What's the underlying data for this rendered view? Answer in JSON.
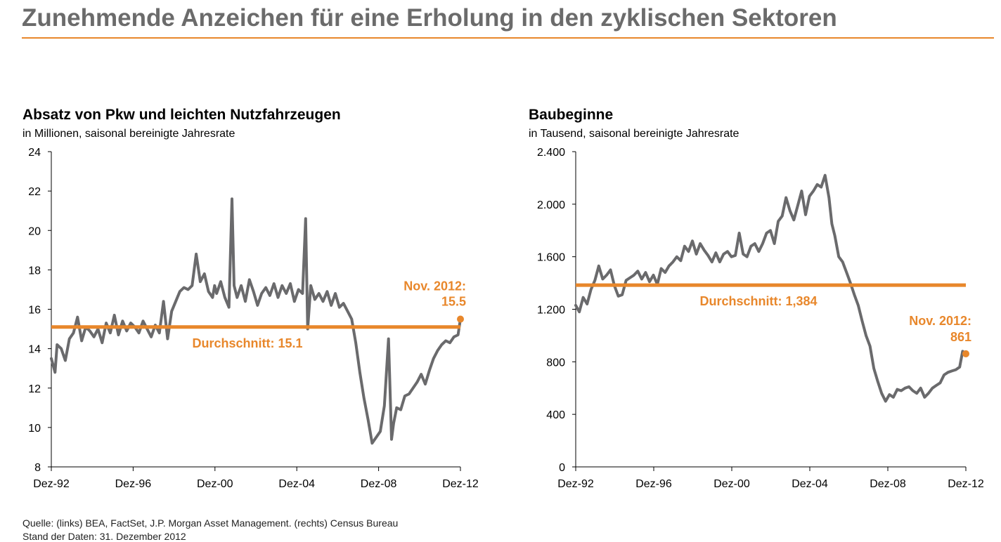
{
  "page": {
    "title": "Zunehmende Anzeichen für eine Erholung in den zyklischen Sektoren",
    "accent_color": "#e8872b",
    "line_color": "#6a6a6c"
  },
  "footer": {
    "source": "Quelle: (links) BEA, FactSet, J.P. Morgan Asset Management. (rechts) Census Bureau",
    "date": "Stand der Daten: 31. Dezember 2012"
  },
  "chart_data": [
    {
      "type": "line",
      "title": "Absatz von Pkw und leichten Nutzfahrzeugen",
      "subtitle": "in Millionen, saisonal bereinigte Jahresrate",
      "xlabel": "",
      "ylabel": "",
      "x_range": [
        1992.917,
        2012.917
      ],
      "ylim": [
        8,
        24
      ],
      "y_ticks": [
        8,
        10,
        12,
        14,
        16,
        18,
        20,
        22,
        24
      ],
      "y_tick_labels": [
        "8",
        "10",
        "12",
        "14",
        "16",
        "18",
        "20",
        "22",
        "24"
      ],
      "x_ticks": [
        1992.917,
        1996.917,
        2000.917,
        2004.917,
        2008.917,
        2012.917
      ],
      "x_tick_labels": [
        "Dez-92",
        "Dez-96",
        "Dez-00",
        "Dez-04",
        "Dez-08",
        "Dez-12"
      ],
      "average": {
        "value": 15.1,
        "label": "Durchschnitt: 15.1"
      },
      "endpoint": {
        "x": 2012.917,
        "y": 15.5,
        "label_line1": "Nov. 2012:",
        "label_line2": "15.5"
      },
      "series": [
        {
          "name": "Absatz",
          "x": [
            1992.917,
            1993.1,
            1993.2,
            1993.4,
            1993.6,
            1993.8,
            1994.0,
            1994.2,
            1994.4,
            1994.6,
            1994.8,
            1995.0,
            1995.2,
            1995.4,
            1995.6,
            1995.8,
            1996.0,
            1996.2,
            1996.4,
            1996.6,
            1996.8,
            1997.0,
            1997.2,
            1997.4,
            1997.6,
            1997.8,
            1998.0,
            1998.2,
            1998.4,
            1998.6,
            1998.8,
            1999.0,
            1999.2,
            1999.4,
            1999.6,
            1999.8,
            2000.0,
            2000.2,
            2000.4,
            2000.6,
            2000.8,
            2000.9,
            2001.0,
            2001.2,
            2001.4,
            2001.6,
            2001.75,
            2001.85,
            2002.0,
            2002.2,
            2002.4,
            2002.6,
            2002.8,
            2003.0,
            2003.2,
            2003.4,
            2003.6,
            2003.8,
            2004.0,
            2004.2,
            2004.4,
            2004.6,
            2004.8,
            2005.0,
            2005.2,
            2005.35,
            2005.45,
            2005.6,
            2005.8,
            2006.0,
            2006.2,
            2006.4,
            2006.6,
            2006.8,
            2007.0,
            2007.2,
            2007.4,
            2007.6,
            2007.8,
            2008.0,
            2008.2,
            2008.4,
            2008.6,
            2008.8,
            2009.0,
            2009.2,
            2009.4,
            2009.55,
            2009.65,
            2009.8,
            2010.0,
            2010.2,
            2010.4,
            2010.6,
            2010.8,
            2011.0,
            2011.2,
            2011.4,
            2011.6,
            2011.8,
            2012.0,
            2012.2,
            2012.4,
            2012.6,
            2012.8,
            2012.917
          ],
          "values": [
            13.5,
            12.8,
            14.2,
            14.0,
            13.4,
            14.5,
            14.8,
            15.6,
            14.4,
            15.1,
            14.9,
            14.6,
            15.0,
            14.3,
            15.3,
            14.8,
            15.7,
            14.7,
            15.4,
            14.9,
            15.3,
            15.1,
            14.8,
            15.4,
            15.0,
            14.6,
            15.2,
            14.8,
            16.4,
            14.5,
            15.9,
            16.4,
            16.9,
            17.1,
            17.0,
            17.2,
            18.8,
            17.4,
            17.8,
            16.9,
            16.6,
            17.2,
            16.8,
            17.4,
            16.6,
            16.1,
            21.6,
            17.2,
            16.6,
            17.2,
            16.4,
            17.5,
            16.9,
            16.2,
            16.8,
            17.1,
            16.7,
            17.3,
            16.6,
            17.2,
            16.8,
            17.3,
            16.4,
            17.0,
            16.8,
            20.6,
            15.0,
            17.2,
            16.5,
            16.8,
            16.4,
            16.9,
            16.2,
            16.8,
            16.1,
            16.3,
            15.9,
            15.5,
            14.3,
            12.8,
            11.5,
            10.4,
            9.2,
            9.5,
            9.8,
            11.1,
            14.5,
            9.4,
            10.2,
            11.0,
            10.9,
            11.6,
            11.7,
            12.0,
            12.3,
            12.7,
            12.2,
            12.9,
            13.5,
            13.9,
            14.2,
            14.4,
            14.3,
            14.6,
            14.7,
            15.5
          ]
        }
      ]
    },
    {
      "type": "line",
      "title": "Baubeginne",
      "subtitle": "in Tausend, saisonal bereinigte Jahresrate",
      "xlabel": "",
      "ylabel": "",
      "x_range": [
        1992.917,
        2012.917
      ],
      "ylim": [
        0,
        2400
      ],
      "y_ticks": [
        0,
        400,
        800,
        1200,
        1600,
        2000,
        2400
      ],
      "y_tick_labels": [
        "0",
        "400",
        "800",
        "1.200",
        "1.600",
        "2.000",
        "2.400"
      ],
      "x_ticks": [
        1992.917,
        1996.917,
        2000.917,
        2004.917,
        2008.917,
        2012.917
      ],
      "x_tick_labels": [
        "Dez-92",
        "Dez-96",
        "Dez-00",
        "Dez-04",
        "Dez-08",
        "Dez-12"
      ],
      "average": {
        "value": 1384,
        "label": "Durchschnitt: 1,384"
      },
      "endpoint": {
        "x": 2012.917,
        "y": 861,
        "label_line1": "Nov. 2012:",
        "label_line2": "861"
      },
      "series": [
        {
          "name": "Baubeginne",
          "x": [
            1992.917,
            1993.1,
            1993.3,
            1993.5,
            1993.7,
            1993.9,
            1994.1,
            1994.3,
            1994.5,
            1994.7,
            1994.9,
            1995.1,
            1995.3,
            1995.5,
            1995.7,
            1995.9,
            1996.1,
            1996.3,
            1996.5,
            1996.7,
            1996.9,
            1997.1,
            1997.3,
            1997.5,
            1997.7,
            1997.9,
            1998.1,
            1998.3,
            1998.5,
            1998.7,
            1998.9,
            1999.1,
            1999.3,
            1999.5,
            1999.7,
            1999.9,
            2000.1,
            2000.3,
            2000.5,
            2000.7,
            2000.9,
            2001.1,
            2001.3,
            2001.5,
            2001.7,
            2001.9,
            2002.1,
            2002.3,
            2002.5,
            2002.7,
            2002.9,
            2003.1,
            2003.3,
            2003.5,
            2003.7,
            2003.9,
            2004.1,
            2004.3,
            2004.5,
            2004.7,
            2004.9,
            2005.1,
            2005.3,
            2005.5,
            2005.7,
            2005.9,
            2006.05,
            2006.2,
            2006.4,
            2006.6,
            2006.8,
            2007.0,
            2007.2,
            2007.4,
            2007.6,
            2007.8,
            2008.0,
            2008.2,
            2008.4,
            2008.6,
            2008.8,
            2009.0,
            2009.2,
            2009.4,
            2009.6,
            2009.8,
            2010.0,
            2010.2,
            2010.4,
            2010.6,
            2010.8,
            2011.0,
            2011.2,
            2011.4,
            2011.6,
            2011.8,
            2012.0,
            2012.2,
            2012.4,
            2012.6,
            2012.75,
            2012.917
          ],
          "values": [
            1230,
            1180,
            1290,
            1240,
            1350,
            1420,
            1530,
            1430,
            1460,
            1500,
            1380,
            1300,
            1310,
            1420,
            1440,
            1460,
            1490,
            1430,
            1480,
            1410,
            1460,
            1390,
            1510,
            1480,
            1530,
            1560,
            1600,
            1570,
            1680,
            1640,
            1720,
            1620,
            1700,
            1650,
            1610,
            1560,
            1630,
            1560,
            1620,
            1640,
            1600,
            1610,
            1780,
            1620,
            1600,
            1680,
            1700,
            1640,
            1700,
            1780,
            1800,
            1700,
            1870,
            1910,
            2050,
            1950,
            1880,
            1990,
            2100,
            1920,
            2060,
            2100,
            2150,
            2130,
            2220,
            2050,
            1850,
            1760,
            1600,
            1560,
            1480,
            1400,
            1310,
            1230,
            1110,
            1000,
            920,
            750,
            650,
            560,
            500,
            550,
            530,
            590,
            580,
            600,
            610,
            580,
            560,
            600,
            530,
            560,
            600,
            620,
            640,
            700,
            720,
            730,
            740,
            760,
            880,
            861
          ]
        }
      ]
    }
  ]
}
